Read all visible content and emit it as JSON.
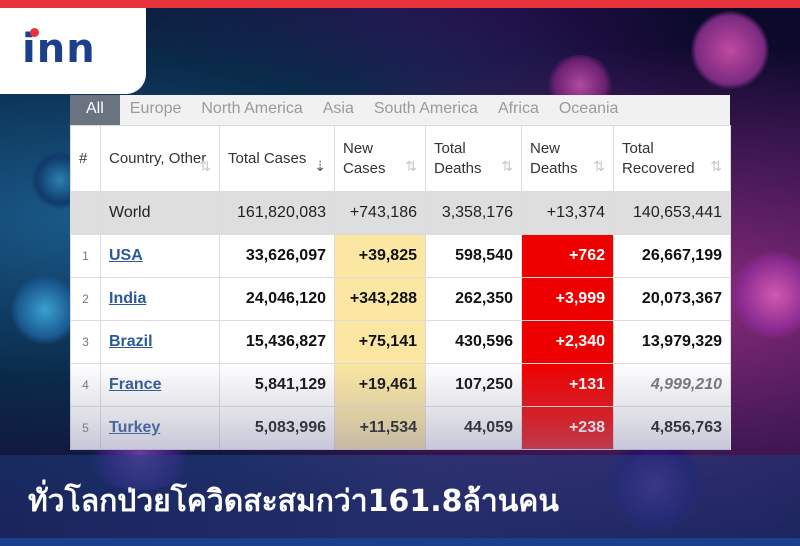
{
  "logo": {
    "text": "inn"
  },
  "tabs": [
    "All",
    "Europe",
    "North America",
    "Asia",
    "South America",
    "Africa",
    "Oceania"
  ],
  "columns": [
    {
      "label": "#",
      "sort_active": false,
      "sort_icon": "sort-icon"
    },
    {
      "label": "Country, Other",
      "sort_active": false,
      "sort_icon": "sort-icon"
    },
    {
      "label": "Total Cases",
      "sort_active": true,
      "sort_icon": "sort-desc-icon"
    },
    {
      "label": "New Cases",
      "sort_active": false,
      "sort_icon": "sort-icon"
    },
    {
      "label": "Total Deaths",
      "sort_active": false,
      "sort_icon": "sort-icon"
    },
    {
      "label": "New Deaths",
      "sort_active": false,
      "sort_icon": "sort-icon"
    },
    {
      "label": "Total Recovered",
      "sort_active": false,
      "sort_icon": "sort-icon"
    }
  ],
  "world": {
    "country": "World",
    "total_cases": "161,820,083",
    "new_cases": "+743,186",
    "total_deaths": "3,358,176",
    "new_deaths": "+13,374",
    "total_recovered": "140,653,441"
  },
  "rows": [
    {
      "num": "1",
      "country": "USA",
      "total_cases": "33,626,097",
      "new_cases": "+39,825",
      "total_deaths": "598,540",
      "new_deaths": "+762",
      "total_recovered": "26,667,199"
    },
    {
      "num": "2",
      "country": "India",
      "total_cases": "24,046,120",
      "new_cases": "+343,288",
      "total_deaths": "262,350",
      "new_deaths": "+3,999",
      "total_recovered": "20,073,367"
    },
    {
      "num": "3",
      "country": "Brazil",
      "total_cases": "15,436,827",
      "new_cases": "+75,141",
      "total_deaths": "430,596",
      "new_deaths": "+2,340",
      "total_recovered": "13,979,329"
    },
    {
      "num": "4",
      "country": "France",
      "total_cases": "5,841,129",
      "new_cases": "+19,461",
      "total_deaths": "107,250",
      "new_deaths": "+131",
      "total_recovered": "4,999,210"
    },
    {
      "num": "5",
      "country": "Turkey",
      "total_cases": "5,083,996",
      "new_cases": "+11,534",
      "total_deaths": "44,059",
      "new_deaths": "+238",
      "total_recovered": "4,856,763"
    }
  ],
  "caption": "ทั่วโลกป่วยโควิดสะสมกว่า161.8ล้านคน",
  "colors": {
    "brand_red": "#e8333c",
    "brand_blue": "#1b3f8b",
    "new_cases_bg": "#fbe7a1",
    "new_deaths_bg": "#ee0000"
  }
}
